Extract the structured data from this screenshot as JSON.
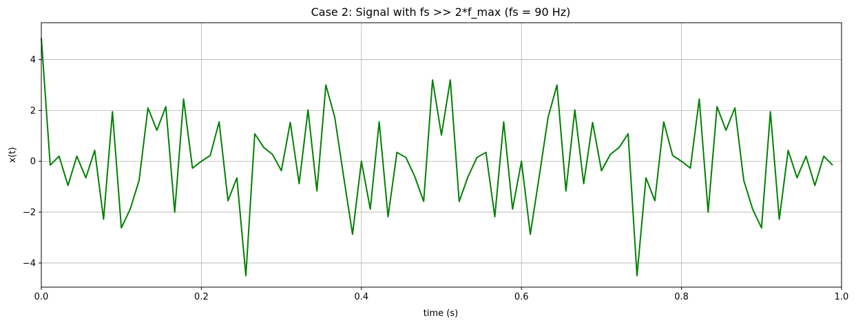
{
  "chart_data": {
    "type": "line",
    "title": "Case 2: Signal with fs >> 2*f_max (fs = 90 Hz)",
    "xlabel": "time (s)",
    "ylabel": "x(t)",
    "xlim": [
      0.0,
      1.0
    ],
    "ylim": [
      -4.95,
      5.45
    ],
    "grid": true,
    "x_ticks": [
      0.0,
      0.2,
      0.4,
      0.6,
      0.8,
      1.0
    ],
    "x_tick_labels": [
      "0.0",
      "0.2",
      "0.4",
      "0.6",
      "0.8",
      "1.0"
    ],
    "y_ticks": [
      -4,
      -2,
      0,
      2,
      4
    ],
    "y_tick_labels": [
      "−4",
      "−2",
      "0",
      "2",
      "4"
    ],
    "series": [
      {
        "color": "#008000",
        "x": [
          0.0,
          0.0111,
          0.0222,
          0.0333,
          0.0444,
          0.0556,
          0.0667,
          0.0778,
          0.0889,
          0.1,
          0.1111,
          0.1222,
          0.1333,
          0.1444,
          0.1556,
          0.1667,
          0.1778,
          0.1889,
          0.2,
          0.2111,
          0.2222,
          0.2333,
          0.2444,
          0.2556,
          0.2667,
          0.2778,
          0.2889,
          0.3,
          0.3111,
          0.3222,
          0.3333,
          0.3444,
          0.3556,
          0.3667,
          0.3778,
          0.3889,
          0.4,
          0.4111,
          0.4222,
          0.4333,
          0.4444,
          0.4556,
          0.4667,
          0.4778,
          0.4889,
          0.5,
          0.5111,
          0.5222,
          0.5333,
          0.5444,
          0.5556,
          0.5667,
          0.5778,
          0.5889,
          0.6,
          0.6111,
          0.6222,
          0.6333,
          0.6444,
          0.6556,
          0.6667,
          0.6778,
          0.6889,
          0.7,
          0.7111,
          0.7222,
          0.7333,
          0.7444,
          0.7556,
          0.7667,
          0.7778,
          0.7889,
          0.8,
          0.8111,
          0.8222,
          0.8333,
          0.8444,
          0.8556,
          0.8667,
          0.8778,
          0.8889,
          0.9,
          0.9111,
          0.9222,
          0.9333,
          0.9444,
          0.9556,
          0.9667,
          0.9778,
          0.9889
        ],
        "values": [
          4.85,
          -0.15,
          0.2,
          -0.95,
          0.2,
          -0.65,
          0.43,
          -2.28,
          1.95,
          -2.62,
          -1.88,
          -0.75,
          2.1,
          1.22,
          2.15,
          -2.0,
          2.45,
          -0.27,
          0.0,
          0.23,
          1.55,
          -1.55,
          -0.65,
          -4.5,
          1.08,
          0.55,
          0.27,
          -0.37,
          1.53,
          -0.88,
          2.02,
          -1.17,
          3.0,
          1.73,
          -0.6,
          -2.87,
          0.0,
          -1.88,
          1.55,
          -2.18,
          0.35,
          0.15,
          -0.6,
          -1.58,
          3.2,
          1.03,
          3.2,
          -1.58,
          -0.6,
          0.15,
          0.35,
          -2.18,
          1.55,
          -1.88,
          0.0,
          -2.87,
          -0.6,
          1.73,
          3.0,
          -1.17,
          2.02,
          -0.88,
          1.53,
          -0.37,
          0.27,
          0.55,
          1.08,
          -4.5,
          -0.65,
          -1.55,
          1.55,
          0.23,
          0.0,
          -0.27,
          2.45,
          -2.0,
          2.15,
          1.22,
          2.1,
          -0.75,
          -1.88,
          -2.62,
          1.95,
          -2.28,
          0.43,
          -0.65,
          0.2,
          -0.95,
          0.2,
          -0.15
        ]
      }
    ]
  }
}
